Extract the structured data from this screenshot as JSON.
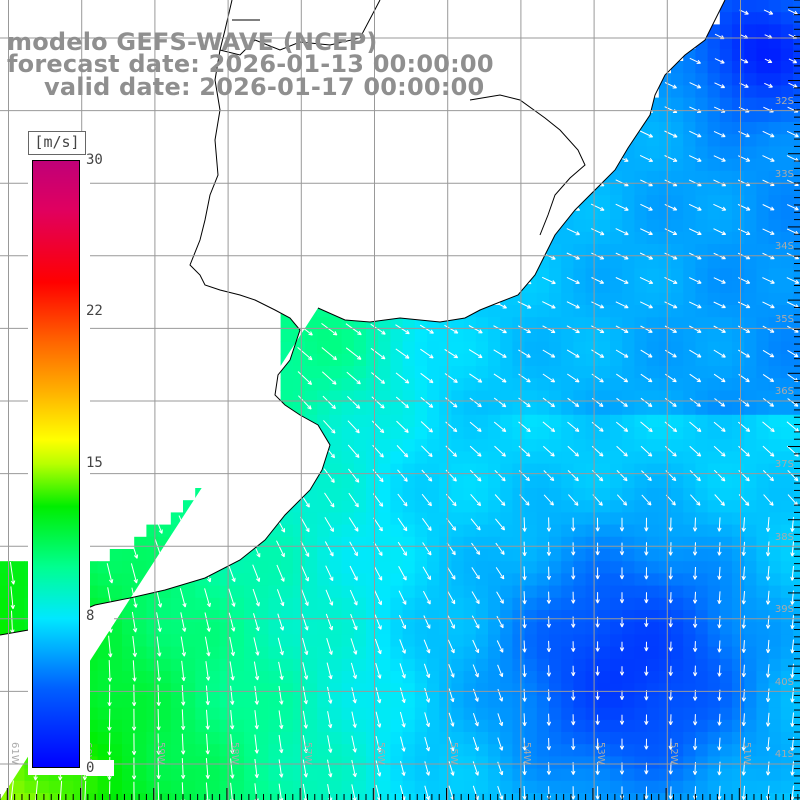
{
  "title": {
    "line1": "modelo GEFS-WAVE (NCEP)",
    "line2": "forecast date: 2026-01-13 00:00:00",
    "line3": "valid date: 2026-01-17 00:00:00"
  },
  "colorbar": {
    "unit_label": "[m/s]",
    "min": 0,
    "max": 30,
    "tick_labels": [
      "30",
      "22",
      "15",
      "8",
      "0"
    ],
    "colors": [
      "#0000ff",
      "#0060ff",
      "#00e8ff",
      "#00ff90",
      "#00ee00",
      "#b8ff00",
      "#ffff00",
      "#ffb000",
      "#ff6600",
      "#ff0000",
      "#c00078"
    ]
  },
  "map": {
    "lat_labels": [
      "32S",
      "33S",
      "34S",
      "35S",
      "36S",
      "37S",
      "38S",
      "39S",
      "40S",
      "41S"
    ],
    "lon_labels": [
      "61W",
      "60W",
      "59W",
      "58W",
      "57W",
      "56W",
      "55W",
      "54W",
      "53W",
      "52W",
      "51W"
    ],
    "land_color": "#ffffff",
    "grid_color": "#999999"
  }
}
